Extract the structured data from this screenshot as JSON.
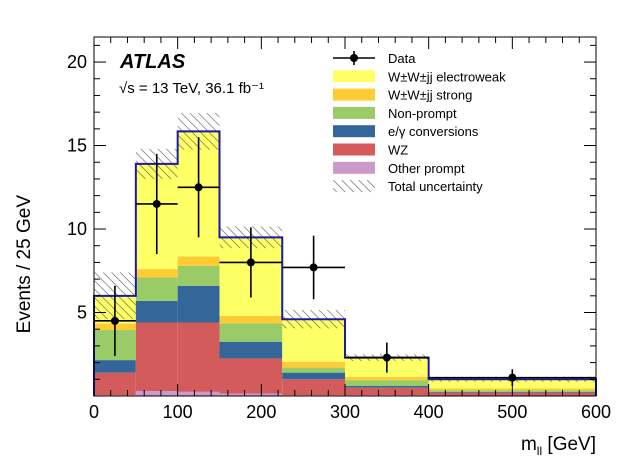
{
  "chart_data": {
    "type": "bar",
    "stacked_histogram": true,
    "experiment": "ATLAS",
    "info": "√s = 13 TeV, 36.1 fb⁻¹",
    "xlabel": "m_ll [GeV]",
    "ylabel": "Events / 25 GeV",
    "xlim": [
      0,
      600
    ],
    "ylim": [
      0,
      21.5
    ],
    "x_ticks": [
      0,
      100,
      200,
      300,
      400,
      500,
      600
    ],
    "y_ticks": [
      5,
      10,
      15,
      20
    ],
    "bin_edges": [
      0,
      50,
      100,
      150,
      225,
      300,
      400,
      600
    ],
    "series": [
      {
        "name": "Other prompt",
        "color": "#cc99cc",
        "values": [
          0.05,
          0.3,
          0.25,
          0.15,
          0.05,
          0.05,
          0.03
        ]
      },
      {
        "name": "WZ",
        "color": "#d45b5b",
        "values": [
          1.35,
          4.1,
          4.15,
          2.1,
          0.95,
          0.45,
          0.17
        ]
      },
      {
        "name": "e/γ conversions",
        "color": "#336699",
        "values": [
          0.75,
          1.3,
          2.2,
          1.0,
          0.4,
          0.1,
          0.05
        ]
      },
      {
        "name": "Non-prompt",
        "color": "#99cc66",
        "values": [
          1.8,
          1.4,
          1.2,
          1.1,
          0.3,
          0.35,
          0.1
        ]
      },
      {
        "name": "W±W±jj strong",
        "color": "#ffcc33",
        "values": [
          0.4,
          0.5,
          0.55,
          0.45,
          0.35,
          0.2,
          0.1
        ]
      },
      {
        "name": "W±W±jj electroweak",
        "color": "#ffff66",
        "values": [
          1.65,
          6.3,
          7.5,
          4.7,
          2.55,
          1.15,
          0.55
        ]
      }
    ],
    "total": [
      6.0,
      13.9,
      15.85,
      9.5,
      4.6,
      2.3,
      1.0
    ],
    "total_uncertainty": [
      1.4,
      0.9,
      1.1,
      0.65,
      0.55,
      0.2,
      0.15
    ],
    "data": {
      "x": [
        25,
        75,
        125,
        187.5,
        262.5,
        350,
        500
      ],
      "y": [
        4.5,
        11.5,
        12.5,
        8.0,
        7.7,
        2.3,
        1.1
      ],
      "yerr": [
        2.1,
        3.0,
        3.0,
        2.1,
        1.9,
        0.9,
        0.5
      ],
      "xerr": [
        25,
        25,
        25,
        37.5,
        37.5,
        50,
        100
      ]
    },
    "legend": {
      "position": "top-right",
      "entries": [
        {
          "label": "Data",
          "kind": "data"
        },
        {
          "label": "W±W±jj electroweak",
          "kind": "fill",
          "color": "#ffff66"
        },
        {
          "label": "W±W±jj strong",
          "kind": "fill",
          "color": "#ffcc33"
        },
        {
          "label": "Non-prompt",
          "kind": "fill",
          "color": "#99cc66"
        },
        {
          "label": "e/γ conversions",
          "kind": "fill",
          "color": "#336699"
        },
        {
          "label": "WZ",
          "kind": "fill",
          "color": "#d45b5b"
        },
        {
          "label": "Other prompt",
          "kind": "fill",
          "color": "#cc99cc"
        },
        {
          "label": "Total uncertainty",
          "kind": "hatch"
        }
      ]
    },
    "total_line_color": "#1a1aa6"
  }
}
